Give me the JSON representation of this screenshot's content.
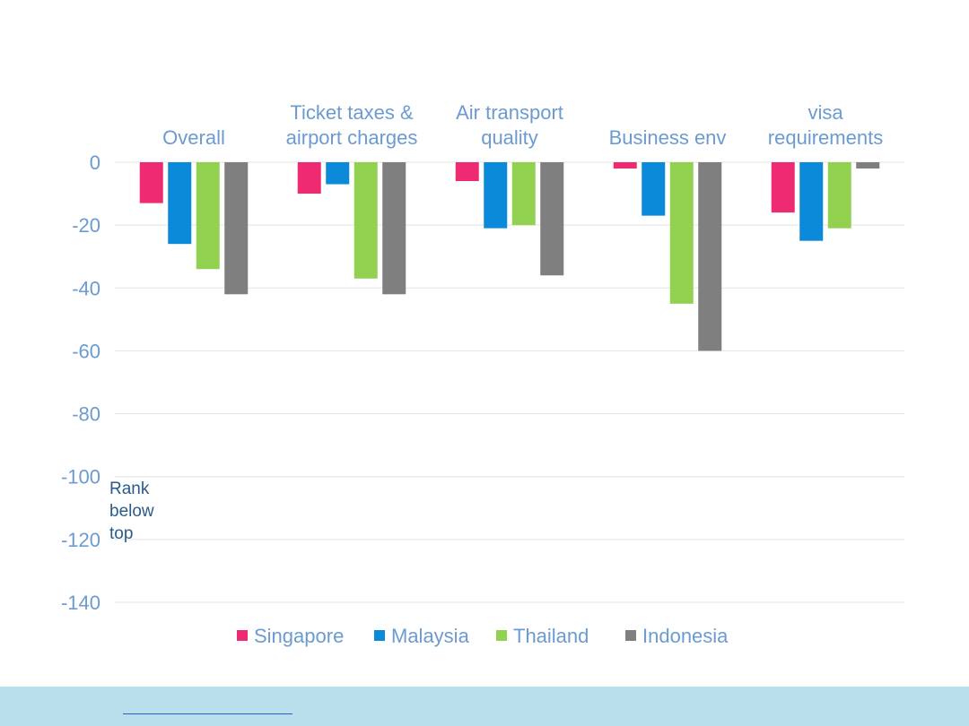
{
  "chart_data": {
    "type": "bar",
    "categories": [
      [
        "Overall"
      ],
      [
        "Ticket taxes &",
        "airport charges"
      ],
      [
        "Air transport",
        "quality"
      ],
      [
        "Business env"
      ],
      [
        "visa",
        "requirements"
      ]
    ],
    "series": [
      {
        "name": "Singapore",
        "color": "#ee2b72",
        "values": [
          -13,
          -10,
          -6,
          -2,
          -16
        ]
      },
      {
        "name": "Malaysia",
        "color": "#0a8ad8",
        "values": [
          -26,
          -7,
          -21,
          -17,
          -25
        ]
      },
      {
        "name": "Thailand",
        "color": "#92d050",
        "values": [
          -34,
          -37,
          -20,
          -45,
          -21
        ]
      },
      {
        "name": "Indonesia",
        "color": "#7f7f7f",
        "values": [
          -42,
          -42,
          -36,
          -60,
          -2
        ]
      }
    ],
    "ylim": [
      -140,
      0
    ],
    "yticks": [
      0,
      -20,
      -40,
      -60,
      -80,
      -100,
      -120,
      -140
    ],
    "grid": true,
    "legend_position": "bottom",
    "annotation": [
      "Rank",
      "below",
      "top"
    ]
  },
  "footer": {
    "background": "#b9e0ea",
    "link_text": ""
  }
}
